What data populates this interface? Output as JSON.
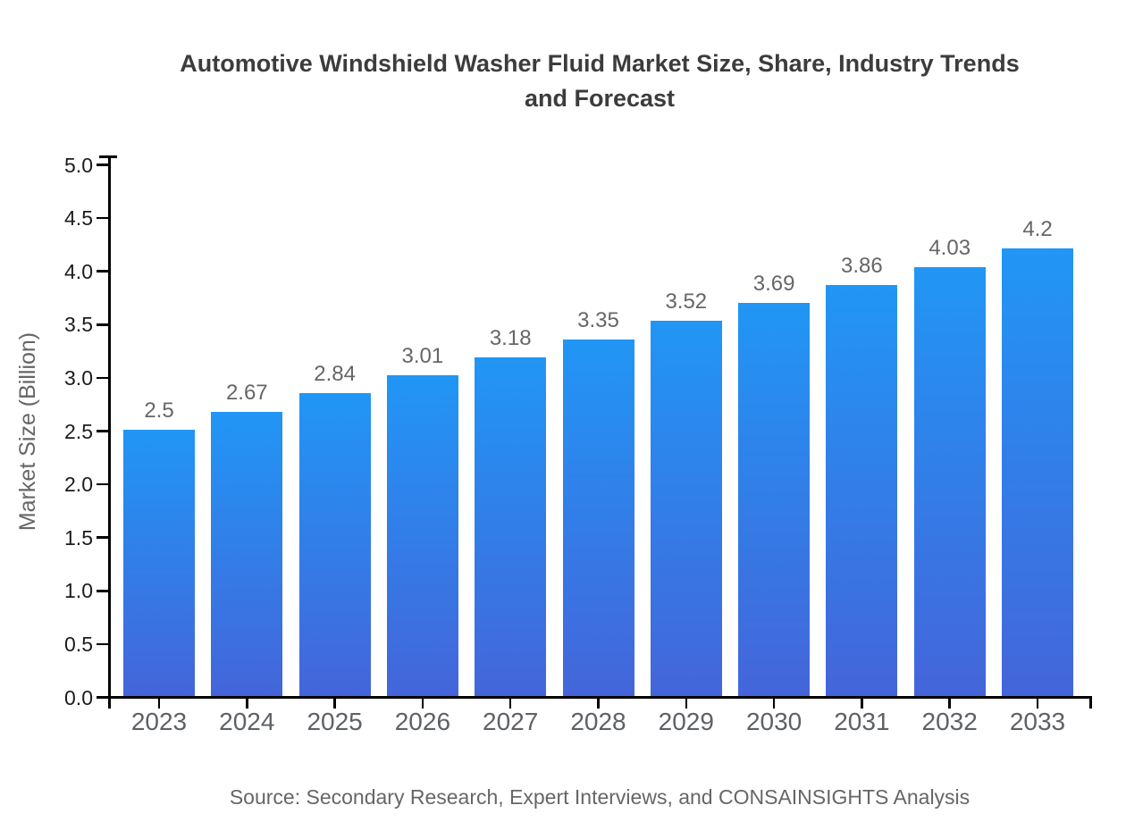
{
  "page": {
    "source_note": "Source: Secondary Research, Expert Interviews, and CONSAINSIGHTS Analysis"
  },
  "chart_data": {
    "type": "bar",
    "title": "Automotive Windshield Washer Fluid Market Size, Share, Industry Trends and Forecast",
    "categories": [
      "2023",
      "2024",
      "2025",
      "2026",
      "2027",
      "2028",
      "2029",
      "2030",
      "2031",
      "2032",
      "2033"
    ],
    "values": [
      2.5,
      2.67,
      2.84,
      3.01,
      3.18,
      3.35,
      3.52,
      3.69,
      3.86,
      4.03,
      4.2
    ],
    "value_labels": [
      "2.5",
      "2.67",
      "2.84",
      "3.01",
      "3.18",
      "3.35",
      "3.52",
      "3.69",
      "3.86",
      "4.03",
      "4.2"
    ],
    "xlabel": "",
    "ylabel": "Market Size (Billion)",
    "ylim": [
      0.0,
      5.0
    ],
    "y_tick_labels": [
      "0.0",
      "0.5",
      "1.0",
      "1.5",
      "2.0",
      "2.5",
      "3.0",
      "3.5",
      "4.0",
      "4.5",
      "5.0"
    ],
    "grid": false,
    "legend": "none",
    "bar_value_labels_shown": true,
    "colors": {
      "bar_gradient_top": "#2196f5",
      "bar_gradient_bottom": "#4465da",
      "axis": "#000000",
      "y_tick_label": "#1c1c1c",
      "x_tick_label": "#5d6166",
      "value_label": "#666666",
      "title": "#3c3c3c",
      "muted_text": "#666666"
    }
  }
}
